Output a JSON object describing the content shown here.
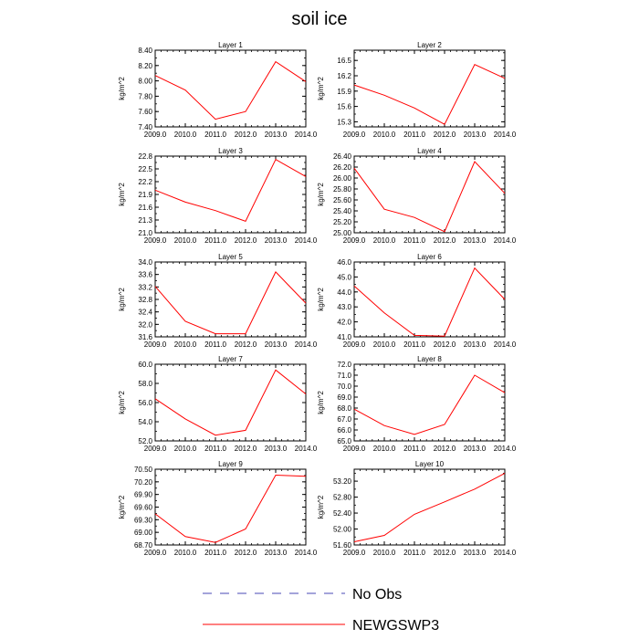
{
  "title": "soil ice",
  "colors": {
    "obs": "#4a4ab5",
    "model": "#ff0000",
    "axis": "#000000"
  },
  "legend": [
    {
      "name": "No Obs",
      "style": "dashed",
      "color": "#4a4ab5"
    },
    {
      "name": "NEWGSWP3",
      "style": "solid",
      "color": "#ff0000"
    }
  ],
  "chart_data": [
    {
      "type": "line",
      "title": "Layer 1",
      "ylabel": "kg/m^2",
      "x": [
        2009,
        2010,
        2011,
        2012,
        2013,
        2014
      ],
      "xlim": [
        2009,
        2014
      ],
      "xticks": [
        "2009.0",
        "2010.0",
        "2011.0",
        "2012.0",
        "2013.0",
        "2014.0"
      ],
      "ylim": [
        7.4,
        8.4
      ],
      "yticks": [
        "7.40",
        "7.60",
        "7.80",
        "8.00",
        "8.20",
        "8.40"
      ],
      "ytick_values": [
        7.4,
        7.6,
        7.8,
        8.0,
        8.2,
        8.4
      ],
      "series": [
        {
          "name": "NEWGSWP3",
          "values": [
            8.07,
            7.88,
            7.5,
            7.6,
            8.25,
            7.99
          ]
        }
      ]
    },
    {
      "type": "line",
      "title": "Layer 2",
      "ylabel": "kg/m^2",
      "x": [
        2009,
        2010,
        2011,
        2012,
        2013,
        2014
      ],
      "xlim": [
        2009,
        2014
      ],
      "xticks": [
        "2009.0",
        "2010.0",
        "2011.0",
        "2012.0",
        "2013.0",
        "2014.0"
      ],
      "ylim": [
        15.2,
        16.7
      ],
      "yticks": [
        "15.3",
        "15.6",
        "15.9",
        "16.2",
        "16.5"
      ],
      "ytick_values": [
        15.3,
        15.6,
        15.9,
        16.2,
        16.5
      ],
      "series": [
        {
          "name": "NEWGSWP3",
          "values": [
            16.02,
            15.82,
            15.57,
            15.25,
            16.42,
            16.15
          ]
        }
      ]
    },
    {
      "type": "line",
      "title": "Layer 3",
      "ylabel": "kg/m^2",
      "x": [
        2009,
        2010,
        2011,
        2012,
        2013,
        2014
      ],
      "xlim": [
        2009,
        2014
      ],
      "xticks": [
        "2009.0",
        "2010.0",
        "2011.0",
        "2012.0",
        "2013.0",
        "2014.0"
      ],
      "ylim": [
        21.0,
        22.8
      ],
      "yticks": [
        "21.0",
        "21.3",
        "21.6",
        "21.9",
        "22.2",
        "22.5",
        "22.8"
      ],
      "ytick_values": [
        21.0,
        21.3,
        21.6,
        21.9,
        22.2,
        22.5,
        22.8
      ],
      "series": [
        {
          "name": "NEWGSWP3",
          "values": [
            22.0,
            21.72,
            21.52,
            21.27,
            22.72,
            22.32
          ]
        }
      ]
    },
    {
      "type": "line",
      "title": "Layer 4",
      "ylabel": "kg/m^2",
      "x": [
        2009,
        2010,
        2011,
        2012,
        2013,
        2014
      ],
      "xlim": [
        2009,
        2014
      ],
      "xticks": [
        "2009.0",
        "2010.0",
        "2011.0",
        "2012.0",
        "2013.0",
        "2014.0"
      ],
      "ylim": [
        25.0,
        26.4
      ],
      "yticks": [
        "25.00",
        "25.20",
        "25.40",
        "25.60",
        "25.80",
        "26.00",
        "26.20",
        "26.40"
      ],
      "ytick_values": [
        25.0,
        25.2,
        25.4,
        25.6,
        25.8,
        26.0,
        26.2,
        26.4
      ],
      "series": [
        {
          "name": "NEWGSWP3",
          "values": [
            26.18,
            25.43,
            25.28,
            25.02,
            26.3,
            25.72
          ]
        }
      ]
    },
    {
      "type": "line",
      "title": "Layer 5",
      "ylabel": "kg/m^2",
      "x": [
        2009,
        2010,
        2011,
        2012,
        2013,
        2014
      ],
      "xlim": [
        2009,
        2014
      ],
      "xticks": [
        "2009.0",
        "2010.0",
        "2011.0",
        "2012.0",
        "2013.0",
        "2014.0"
      ],
      "ylim": [
        31.6,
        34.0
      ],
      "yticks": [
        "31.6",
        "32.0",
        "32.4",
        "32.8",
        "33.2",
        "33.6",
        "34.0"
      ],
      "ytick_values": [
        31.6,
        32.0,
        32.4,
        32.8,
        33.2,
        33.6,
        34.0
      ],
      "series": [
        {
          "name": "NEWGSWP3",
          "values": [
            33.22,
            32.1,
            31.7,
            31.7,
            33.68,
            32.68
          ]
        }
      ]
    },
    {
      "type": "line",
      "title": "Layer 6",
      "ylabel": "kg/m^2",
      "x": [
        2009,
        2010,
        2011,
        2012,
        2013,
        2014
      ],
      "xlim": [
        2009,
        2014
      ],
      "xticks": [
        "2009.0",
        "2010.0",
        "2011.0",
        "2012.0",
        "2013.0",
        "2014.0"
      ],
      "ylim": [
        41.0,
        46.0
      ],
      "yticks": [
        "41.0",
        "42.0",
        "43.0",
        "44.0",
        "45.0",
        "46.0"
      ],
      "ytick_values": [
        41.0,
        42.0,
        43.0,
        44.0,
        45.0,
        46.0
      ],
      "series": [
        {
          "name": "NEWGSWP3",
          "values": [
            44.4,
            42.6,
            41.1,
            41.05,
            45.6,
            43.5
          ]
        }
      ]
    },
    {
      "type": "line",
      "title": "Layer 7",
      "ylabel": "kg/m^2",
      "x": [
        2009,
        2010,
        2011,
        2012,
        2013,
        2014
      ],
      "xlim": [
        2009,
        2014
      ],
      "xticks": [
        "2009.0",
        "2010.0",
        "2011.0",
        "2012.0",
        "2013.0",
        "2014.0"
      ],
      "ylim": [
        52.0,
        60.0
      ],
      "yticks": [
        "52.0",
        "54.0",
        "56.0",
        "58.0",
        "60.0"
      ],
      "ytick_values": [
        52.0,
        54.0,
        56.0,
        58.0,
        60.0
      ],
      "series": [
        {
          "name": "NEWGSWP3",
          "values": [
            56.4,
            54.3,
            52.6,
            53.1,
            59.4,
            56.9
          ]
        }
      ]
    },
    {
      "type": "line",
      "title": "Layer 8",
      "ylabel": "kg/m^2",
      "x": [
        2009,
        2010,
        2011,
        2012,
        2013,
        2014
      ],
      "xlim": [
        2009,
        2014
      ],
      "xticks": [
        "2009.0",
        "2010.0",
        "2011.0",
        "2012.0",
        "2013.0",
        "2014.0"
      ],
      "ylim": [
        65.0,
        72.0
      ],
      "yticks": [
        "65.0",
        "66.0",
        "67.0",
        "68.0",
        "69.0",
        "70.0",
        "71.0",
        "72.0"
      ],
      "ytick_values": [
        65.0,
        66.0,
        67.0,
        68.0,
        69.0,
        70.0,
        71.0,
        72.0
      ],
      "series": [
        {
          "name": "NEWGSWP3",
          "values": [
            67.9,
            66.4,
            65.6,
            66.5,
            71.0,
            69.4
          ]
        }
      ]
    },
    {
      "type": "line",
      "title": "Layer 9",
      "ylabel": "kg/m^2",
      "x": [
        2009,
        2010,
        2011,
        2012,
        2013,
        2014
      ],
      "xlim": [
        2009,
        2014
      ],
      "xticks": [
        "2009.0",
        "2010.0",
        "2011.0",
        "2012.0",
        "2013.0",
        "2014.0"
      ],
      "ylim": [
        68.7,
        70.5
      ],
      "yticks": [
        "68.70",
        "69.00",
        "69.30",
        "69.60",
        "69.90",
        "70.20",
        "70.50"
      ],
      "ytick_values": [
        68.7,
        69.0,
        69.3,
        69.6,
        69.9,
        70.2,
        70.5
      ],
      "series": [
        {
          "name": "NEWGSWP3",
          "values": [
            69.44,
            68.9,
            68.76,
            69.08,
            70.36,
            70.33
          ]
        }
      ]
    },
    {
      "type": "line",
      "title": "Layer 10",
      "ylabel": "kg/m^2",
      "x": [
        2009,
        2010,
        2011,
        2012,
        2013,
        2014
      ],
      "xlim": [
        2009,
        2014
      ],
      "xticks": [
        "2009.0",
        "2010.0",
        "2011.0",
        "2012.0",
        "2013.0",
        "2014.0"
      ],
      "ylim": [
        51.6,
        53.5
      ],
      "yticks": [
        "51.60",
        "52.00",
        "52.40",
        "52.80",
        "53.20"
      ],
      "ytick_values": [
        51.6,
        52.0,
        52.4,
        52.8,
        53.2
      ],
      "series": [
        {
          "name": "NEWGSWP3",
          "values": [
            51.68,
            51.84,
            52.37,
            52.68,
            53.0,
            53.4
          ]
        }
      ]
    }
  ]
}
